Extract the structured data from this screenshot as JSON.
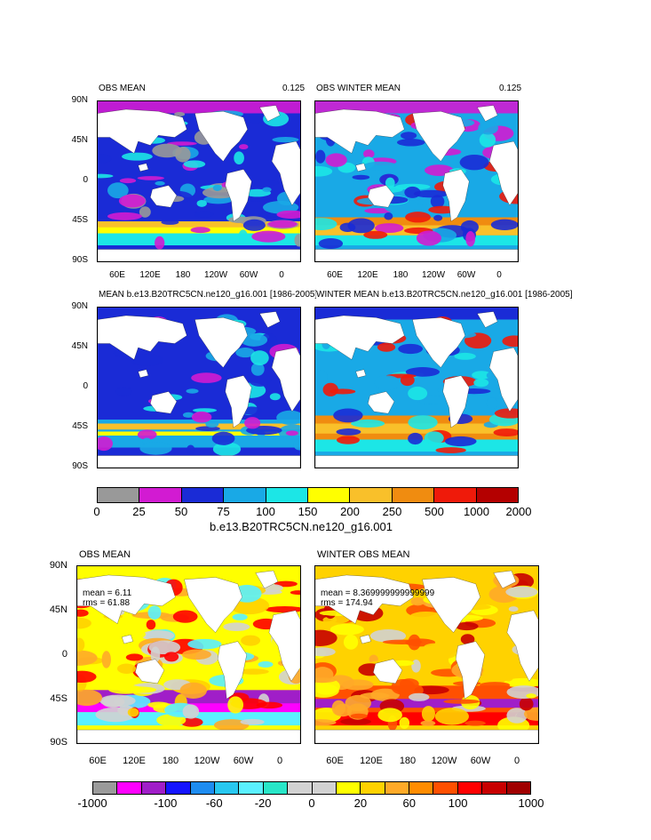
{
  "panels": [
    {
      "title_left": "OBS MEAN",
      "title_right": "0.125",
      "stats": null
    },
    {
      "title_left": "OBS WINTER MEAN",
      "title_right": "0.125",
      "stats": null
    },
    {
      "title_left": "MEAN b.e13.B20TRC5CN.ne120_g16.001 [1986-2005]",
      "title_right": "",
      "stats": null
    },
    {
      "title_left": "WINTER MEAN b.e13.B20TRC5CN.ne120_g16.001 [1986-2005]",
      "title_right": "",
      "stats": null
    },
    {
      "title_left": "OBS MEAN",
      "title_right": "",
      "stats": {
        "mean": "mean = 6.11",
        "rms": "rms = 61.88"
      }
    },
    {
      "title_left": "WINTER OBS MEAN",
      "title_right": "",
      "stats": {
        "mean": "mean = 8.369999999999999",
        "rms": "rms = 174.94"
      }
    }
  ],
  "lat_labels": [
    "90N",
    "45N",
    "0",
    "45S",
    "90S"
  ],
  "lon_labels": [
    "60E",
    "120E",
    "180",
    "120W",
    "60W",
    "0"
  ],
  "colorbar_top": {
    "labels": [
      "0",
      "25",
      "50",
      "75",
      "100",
      "150",
      "200",
      "250",
      "500",
      "1000",
      "2000"
    ],
    "colors": [
      "#999999",
      "#d21bd2",
      "#1a2bd6",
      "#19a9e6",
      "#1ce6e6",
      "#ffff00",
      "#f9c02a",
      "#f08c10",
      "#ef1a0a",
      "#b40000"
    ],
    "title": "b.e13.B20TRC5CN.ne120_g16.001"
  },
  "colorbar_bottom": {
    "labels": [
      "-1000",
      "-100",
      "-60",
      "-20",
      "0",
      "20",
      "60",
      "100",
      "1000"
    ],
    "colors": [
      "#9a9a9a",
      "#ff00ff",
      "#a01ec8",
      "#1414ff",
      "#1e8cf0",
      "#28c8f0",
      "#5af0ff",
      "#28e6c8",
      "#d2d2d2",
      "#d2d2d2",
      "#ffff00",
      "#ffd200",
      "#ffaa28",
      "#ff8c00",
      "#ff5000",
      "#ff0000",
      "#c80000",
      "#a00000"
    ]
  }
}
